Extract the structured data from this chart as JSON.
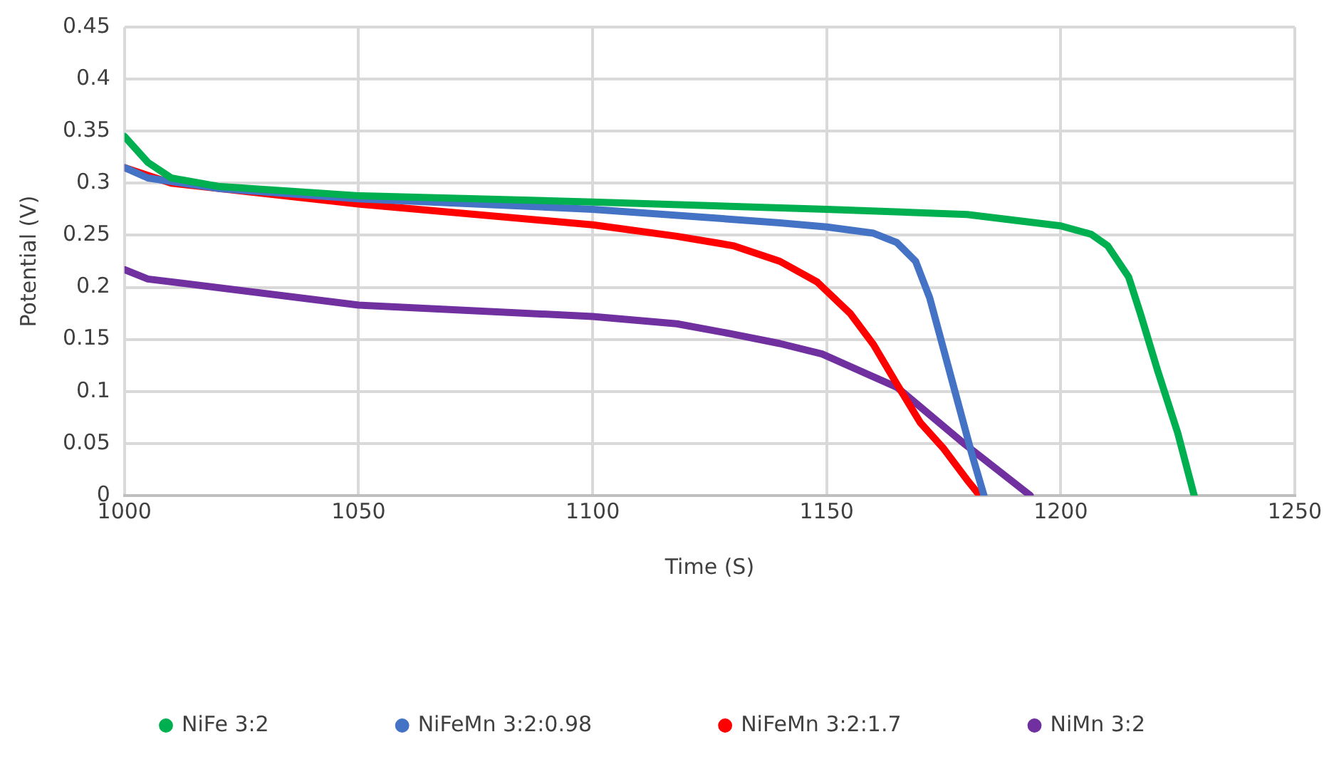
{
  "chart_data": {
    "type": "line",
    "xlabel": "Time (S)",
    "ylabel": "Potential (V)",
    "xlim": [
      1000,
      1250
    ],
    "xticks": [
      1000,
      1050,
      1100,
      1150,
      1200,
      1250
    ],
    "ylim": [
      0,
      0.45
    ],
    "yticks": [
      0,
      0.05,
      0.1,
      0.15,
      0.2,
      0.25,
      0.3,
      0.35,
      0.4,
      0.45
    ],
    "grid": true,
    "legend": "bottom",
    "marker": "none",
    "line_style": "solid",
    "series": [
      {
        "name": "NiFe 3:2",
        "color": "#00b050",
        "x": [
          1000,
          1005,
          1010,
          1020,
          1050,
          1100,
          1150,
          1180,
          1200,
          1206.5,
          1210,
          1214.5,
          1217,
          1220.7,
          1225,
          1228.5
        ],
        "values": [
          0.345,
          0.32,
          0.305,
          0.297,
          0.288,
          0.282,
          0.275,
          0.27,
          0.259,
          0.251,
          0.24,
          0.21,
          0.175,
          0.12,
          0.06,
          0
        ]
      },
      {
        "name": "NiFeMn 3:2:0.98",
        "color": "#4472c4",
        "x": [
          1000,
          1005,
          1020,
          1050,
          1100,
          1140,
          1150,
          1160,
          1165,
          1169,
          1172,
          1175,
          1178,
          1181,
          1183.6
        ],
        "values": [
          0.315,
          0.305,
          0.295,
          0.285,
          0.275,
          0.262,
          0.258,
          0.252,
          0.243,
          0.225,
          0.19,
          0.14,
          0.09,
          0.04,
          0
        ]
      },
      {
        "name": "NiFeMn 3:2:1.7",
        "color": "#ff0000",
        "x": [
          1000,
          1010,
          1050,
          1100,
          1118,
          1130,
          1140,
          1148,
          1155,
          1160,
          1165,
          1170,
          1175,
          1180,
          1182.7
        ],
        "values": [
          0.315,
          0.3,
          0.28,
          0.26,
          0.249,
          0.24,
          0.225,
          0.205,
          0.175,
          0.145,
          0.107,
          0.07,
          0.045,
          0.015,
          0
        ]
      },
      {
        "name": "NiMn 3:2",
        "color": "#7030a0",
        "x": [
          1000,
          1005,
          1050,
          1100,
          1118,
          1130,
          1140,
          1149,
          1165,
          1179.6,
          1193.5
        ],
        "values": [
          0.217,
          0.208,
          0.183,
          0.172,
          0.165,
          0.155,
          0.146,
          0.136,
          0.104,
          0.049,
          0
        ]
      }
    ]
  }
}
